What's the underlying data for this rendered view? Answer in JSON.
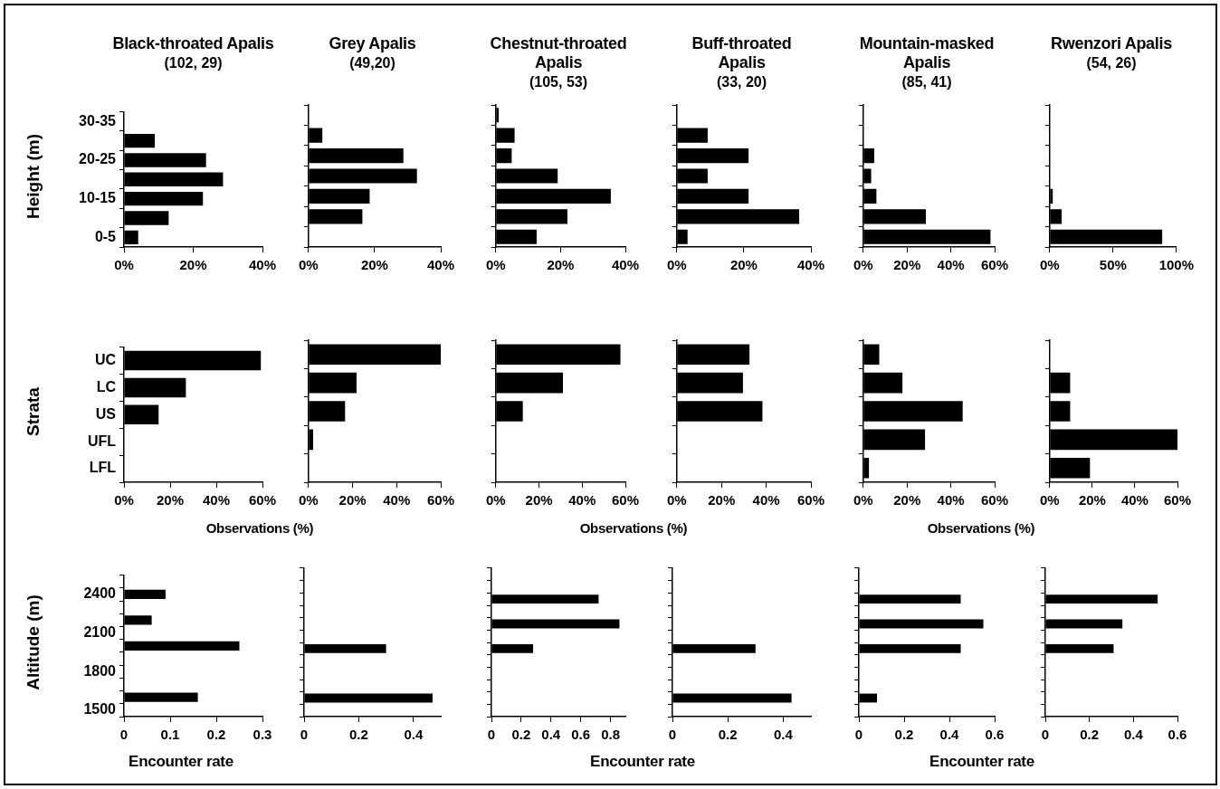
{
  "chart_data": [
    {
      "type": "bar",
      "orientation": "horizontal",
      "title": "Black-throated Apalis",
      "subtitle": "(102, 29)",
      "ylabel": "Height (m)",
      "categories": [
        "30-35",
        null,
        "20-25",
        null,
        "10-15",
        null,
        "0-5"
      ],
      "values": [
        null,
        8.9,
        23.7,
        28.6,
        22.8,
        12.9,
        4.1
      ],
      "color": "#000000",
      "xlim": [
        0,
        40
      ],
      "xticks": [
        {
          "value": 0,
          "label": "0%"
        },
        {
          "value": 20,
          "label": "20%"
        },
        {
          "value": 40,
          "label": "40%"
        }
      ]
    },
    {
      "type": "bar",
      "orientation": "horizontal",
      "title": "Grey Apalis",
      "subtitle": "(49,20)",
      "categories": [
        null,
        null,
        null,
        null,
        null,
        null,
        null
      ],
      "values": [
        null,
        4.2,
        28.7,
        32.8,
        18.5,
        16.3,
        null
      ],
      "color": "#000000",
      "xlim": [
        0,
        40
      ],
      "xticks": [
        {
          "value": 0,
          "label": "0%"
        },
        {
          "value": 20,
          "label": "20%"
        },
        {
          "value": 40,
          "label": "40%"
        }
      ],
      "tick_labels": "x"
    },
    {
      "type": "bar",
      "orientation": "horizontal",
      "title": "Chestnut-throated Apalis",
      "subtitle": "(105, 53)",
      "categories": [
        null,
        null,
        null,
        null,
        null,
        null,
        null
      ],
      "values": [
        0.9,
        5.8,
        4.9,
        19.1,
        35.5,
        22.1,
        12.6
      ],
      "color": "#000000",
      "xlim": [
        0,
        40
      ],
      "xticks": [
        {
          "value": 0,
          "label": "0%"
        },
        {
          "value": 20,
          "label": "20%"
        },
        {
          "value": 40,
          "label": "40%"
        }
      ],
      "tick_labels": "x"
    },
    {
      "type": "bar",
      "orientation": "horizontal",
      "title": "Buff-throated Apalis",
      "subtitle": "(33, 20)",
      "categories": [
        null,
        null,
        null,
        null,
        null,
        null,
        null
      ],
      "values": [
        null,
        9.2,
        21.4,
        9.2,
        21.4,
        36.5,
        3.2
      ],
      "color": "#000000",
      "xlim": [
        0,
        40
      ],
      "xticks": [
        {
          "value": 0,
          "label": "0%"
        },
        {
          "value": 20,
          "label": "20%"
        },
        {
          "value": 40,
          "label": "40%"
        }
      ],
      "tick_labels": "x"
    },
    {
      "type": "bar",
      "orientation": "horizontal",
      "title": "Mountain-masked Apalis",
      "subtitle": "(85, 41)",
      "categories": [
        null,
        null,
        null,
        null,
        null,
        null,
        null
      ],
      "values": [
        null,
        null,
        5.0,
        3.6,
        6.0,
        28.6,
        58.1
      ],
      "color": "#000000",
      "xlim": [
        0,
        60
      ],
      "xticks": [
        {
          "value": 0,
          "label": "0%"
        },
        {
          "value": 20,
          "label": "20%"
        },
        {
          "value": 40,
          "label": "40%"
        },
        {
          "value": 60,
          "label": "60%"
        }
      ],
      "tick_labels": "x"
    },
    {
      "type": "bar",
      "orientation": "horizontal",
      "title": "Rwenzori Apalis",
      "subtitle": "(54, 26)",
      "categories": [
        null,
        null,
        null,
        null,
        null,
        null,
        null
      ],
      "values": [
        null,
        null,
        null,
        null,
        2.4,
        9.4,
        88.8
      ],
      "color": "#000000",
      "xlim": [
        0,
        100
      ],
      "xticks": [
        {
          "value": 0,
          "label": "0%"
        },
        {
          "value": 50,
          "label": "50%"
        },
        {
          "value": 100,
          "label": "100%"
        }
      ],
      "tick_labels": "x"
    },
    {
      "type": "bar",
      "orientation": "horizontal",
      "ylabel": "Strata",
      "xlabel": "Observations (%)",
      "categories": [
        "UC",
        "LC",
        "US",
        "UFL",
        "LFL"
      ],
      "values": [
        59.3,
        26.8,
        15.0,
        null,
        null
      ],
      "color": "#000000",
      "xlim": [
        0,
        60
      ],
      "xticks": [
        {
          "value": 0,
          "label": "0%"
        },
        {
          "value": 20,
          "label": "20%"
        },
        {
          "value": 40,
          "label": "40%"
        },
        {
          "value": 60,
          "label": "60%"
        }
      ]
    },
    {
      "type": "bar",
      "orientation": "horizontal",
      "categories": [
        null,
        null,
        null,
        null,
        null
      ],
      "values": [
        60,
        21.8,
        16.6,
        2.1,
        null
      ],
      "color": "#000000",
      "xlim": [
        0,
        60
      ],
      "xticks": [
        {
          "value": 0,
          "label": "0%"
        },
        {
          "value": 20,
          "label": "20%"
        },
        {
          "value": 40,
          "label": "40%"
        },
        {
          "value": 60,
          "label": "60%"
        }
      ],
      "tick_labels": "x"
    },
    {
      "type": "bar",
      "orientation": "horizontal",
      "xlabel": "Observations (%)",
      "categories": [
        null,
        null,
        null,
        null,
        null
      ],
      "values": [
        57.7,
        31.1,
        12.5,
        null,
        null
      ],
      "color": "#000000",
      "xlim": [
        0,
        60
      ],
      "xticks": [
        {
          "value": 0,
          "label": "0%"
        },
        {
          "value": 20,
          "label": "20%"
        },
        {
          "value": 40,
          "label": "40%"
        },
        {
          "value": 60,
          "label": "60%"
        }
      ],
      "tick_labels": "x"
    },
    {
      "type": "bar",
      "orientation": "horizontal",
      "categories": [
        null,
        null,
        null,
        null,
        null
      ],
      "values": [
        32.5,
        29.6,
        38.3,
        null,
        null
      ],
      "color": "#000000",
      "xlim": [
        0,
        60
      ],
      "xticks": [
        {
          "value": 0,
          "label": "0%"
        },
        {
          "value": 20,
          "label": "20%"
        },
        {
          "value": 40,
          "label": "40%"
        },
        {
          "value": 60,
          "label": "60%"
        }
      ],
      "tick_labels": "x"
    },
    {
      "type": "bar",
      "orientation": "horizontal",
      "xlabel": "Observations (%)",
      "categories": [
        null,
        null,
        null,
        null,
        null
      ],
      "values": [
        7.3,
        17.9,
        45.4,
        28.2,
        2.6
      ],
      "color": "#000000",
      "xlim": [
        0,
        60
      ],
      "xticks": [
        {
          "value": 0,
          "label": "0%"
        },
        {
          "value": 20,
          "label": "20%"
        },
        {
          "value": 40,
          "label": "40%"
        },
        {
          "value": 60,
          "label": "60%"
        }
      ],
      "tick_labels": "x"
    },
    {
      "type": "bar",
      "orientation": "horizontal",
      "categories": [
        null,
        null,
        null,
        null,
        null
      ],
      "values": [
        null,
        9.6,
        9.6,
        60,
        18.9
      ],
      "color": "#000000",
      "xlim": [
        0,
        60
      ],
      "xticks": [
        {
          "value": 0,
          "label": "0%"
        },
        {
          "value": 20,
          "label": "20%"
        },
        {
          "value": 40,
          "label": "40%"
        },
        {
          "value": 60,
          "label": "60%"
        }
      ],
      "tick_labels": "x"
    },
    {
      "type": "bar",
      "orientation": "horizontal",
      "ylabel": "Altitude (m)",
      "xlabel": "Encounter rate",
      "categories": [
        null,
        "2400",
        null,
        null,
        "2100",
        null,
        null,
        "1800",
        null,
        null,
        "1500"
      ],
      "values": [
        null,
        0.09,
        null,
        0.06,
        null,
        0.25,
        null,
        null,
        null,
        0.16,
        null
      ],
      "color": "#000000",
      "xlim": [
        0,
        0.3
      ],
      "xticks": [
        0,
        0.1,
        0.2,
        0.3
      ]
    },
    {
      "type": "bar",
      "orientation": "horizontal",
      "categories": [
        null,
        null,
        null,
        null,
        null,
        null,
        null,
        null,
        null,
        null,
        null,
        null
      ],
      "values": [
        null,
        null,
        null,
        null,
        null,
        null,
        0.3,
        null,
        null,
        null,
        0.47,
        null
      ],
      "color": "#000000",
      "xlim": [
        0,
        0.5
      ],
      "xticks": [
        0,
        0.2,
        0.4
      ],
      "tick_labels": "x"
    },
    {
      "type": "bar",
      "orientation": "horizontal",
      "xlabel": "Encounter rate",
      "categories": [
        null,
        null,
        null,
        null,
        null,
        null,
        null,
        null,
        null,
        null,
        null,
        null
      ],
      "values": [
        null,
        null,
        0.72,
        null,
        0.86,
        null,
        0.28,
        null,
        null,
        null,
        null,
        null
      ],
      "color": "#000000",
      "xlim": [
        0,
        0.9
      ],
      "xticks": [
        0,
        0.2,
        0.4,
        0.6,
        0.8
      ],
      "tick_labels": "x"
    },
    {
      "type": "bar",
      "orientation": "horizontal",
      "categories": [
        null,
        null,
        null,
        null,
        null,
        null,
        null,
        null,
        null,
        null,
        null,
        null
      ],
      "values": [
        null,
        null,
        null,
        null,
        null,
        null,
        0.3,
        null,
        null,
        null,
        0.43,
        null
      ],
      "color": "#000000",
      "xlim": [
        0,
        0.5
      ],
      "xticks": [
        0,
        0.2,
        0.4
      ],
      "tick_labels": "x"
    },
    {
      "type": "bar",
      "orientation": "horizontal",
      "xlabel": "Encounter rate",
      "categories": [
        null,
        null,
        null,
        null,
        null,
        null,
        null,
        null,
        null,
        null,
        null,
        null
      ],
      "values": [
        null,
        null,
        0.45,
        null,
        0.55,
        null,
        0.45,
        null,
        null,
        null,
        0.08,
        null
      ],
      "color": "#000000",
      "xlim": [
        0,
        0.6
      ],
      "xticks": [
        0,
        0.2,
        0.4,
        0.6
      ],
      "tick_labels": "x"
    },
    {
      "type": "bar",
      "orientation": "horizontal",
      "categories": [
        null,
        null,
        null,
        null,
        null,
        null,
        null,
        null,
        null,
        null,
        null,
        null
      ],
      "values": [
        null,
        null,
        0.51,
        null,
        0.35,
        null,
        0.31,
        null,
        null,
        null,
        null,
        null
      ],
      "color": "#000000",
      "xlim": [
        0,
        0.6
      ],
      "xticks": [
        0,
        0.2,
        0.4,
        0.6
      ],
      "tick_labels": "x"
    }
  ]
}
